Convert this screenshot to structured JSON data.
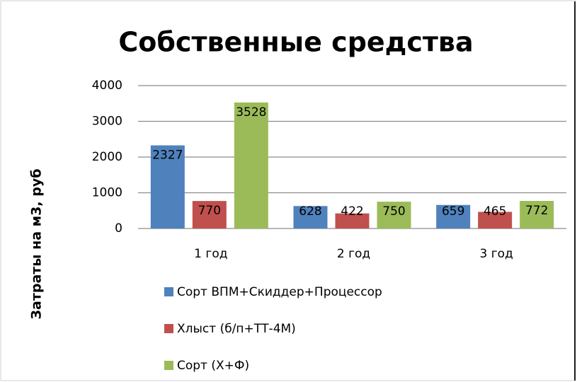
{
  "chart_data": {
    "type": "bar",
    "title": "Собственные средства",
    "y_label": "Затраты на  м3, руб",
    "categories": [
      "1 год",
      "2 год",
      "3 год"
    ],
    "series": [
      {
        "name": "Сорт ВПМ+Скиддер+Процессор",
        "color": "#4f81bd",
        "values": [
          2327,
          628,
          659
        ]
      },
      {
        "name": "Хлыст (б/п+ТТ-4М)",
        "color": "#c0504d",
        "values": [
          770,
          422,
          465
        ]
      },
      {
        "name": "Сорт (Х+Ф)",
        "color": "#9bbb59",
        "values": [
          3528,
          750,
          772
        ]
      }
    ],
    "ylim": [
      0,
      4000
    ],
    "yticks": [
      0,
      1000,
      2000,
      3000,
      4000
    ],
    "grid": true,
    "legend": "bottom"
  }
}
